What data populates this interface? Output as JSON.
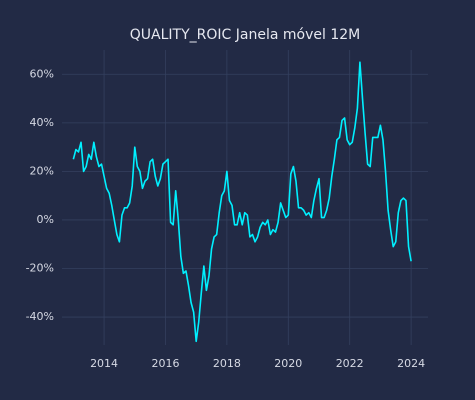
{
  "chart_data": {
    "type": "line",
    "title": "QUALITY_ROIC Janela móvel 12M",
    "x": [
      2013,
      2013.083,
      2013.167,
      2013.25,
      2013.333,
      2013.417,
      2013.5,
      2013.583,
      2013.667,
      2013.75,
      2013.833,
      2013.917,
      2014,
      2014.083,
      2014.167,
      2014.25,
      2014.333,
      2014.417,
      2014.5,
      2014.583,
      2014.667,
      2014.75,
      2014.833,
      2014.917,
      2015,
      2015.083,
      2015.167,
      2015.25,
      2015.333,
      2015.417,
      2015.5,
      2015.583,
      2015.667,
      2015.75,
      2015.833,
      2015.917,
      2016,
      2016.083,
      2016.167,
      2016.25,
      2016.333,
      2016.417,
      2016.5,
      2016.583,
      2016.667,
      2016.75,
      2016.833,
      2016.917,
      2017,
      2017.083,
      2017.167,
      2017.25,
      2017.333,
      2017.417,
      2017.5,
      2017.583,
      2017.667,
      2017.75,
      2017.833,
      2017.917,
      2018,
      2018.083,
      2018.167,
      2018.25,
      2018.333,
      2018.417,
      2018.5,
      2018.583,
      2018.667,
      2018.75,
      2018.833,
      2018.917,
      2019,
      2019.083,
      2019.167,
      2019.25,
      2019.333,
      2019.417,
      2019.5,
      2019.583,
      2019.667,
      2019.75,
      2019.833,
      2019.917,
      2020,
      2020.083,
      2020.167,
      2020.25,
      2020.333,
      2020.417,
      2020.5,
      2020.583,
      2020.667,
      2020.75,
      2020.833,
      2020.917,
      2021,
      2021.083,
      2021.167,
      2021.25,
      2021.333,
      2021.417,
      2021.5,
      2021.583,
      2021.667,
      2021.75,
      2021.833,
      2021.917,
      2022,
      2022.083,
      2022.167,
      2022.25,
      2022.333,
      2022.417,
      2022.5,
      2022.583,
      2022.667,
      2022.75,
      2022.833,
      2022.917,
      2023,
      2023.083,
      2023.167,
      2023.25,
      2023.333,
      2023.417,
      2023.5,
      2023.583,
      2023.667,
      2023.75,
      2023.833,
      2023.917,
      2024
    ],
    "series": [
      {
        "color": "#00f0ff",
        "values": [
          25,
          29,
          28,
          32,
          20,
          22,
          27,
          25,
          32,
          26,
          22,
          23,
          18,
          13,
          11,
          6,
          0,
          -6,
          -9,
          2,
          5,
          5,
          7,
          14,
          30,
          22,
          20,
          13,
          16,
          17,
          24,
          25,
          18,
          14,
          17,
          23,
          24,
          25,
          -1,
          -2,
          12,
          0,
          -15,
          -22,
          -21,
          -27,
          -34,
          -38,
          -50,
          -42,
          -30,
          -19,
          -29,
          -23,
          -12,
          -7,
          -6,
          3,
          10,
          12,
          20,
          8,
          6,
          -2,
          -2,
          3,
          -2,
          3,
          2,
          -7,
          -6,
          -9,
          -7,
          -3,
          -1,
          -2,
          0,
          -6,
          -4,
          -5,
          -1,
          7,
          4,
          1,
          2,
          19,
          22,
          16,
          5,
          5,
          4,
          2,
          3,
          1,
          8,
          13,
          17,
          1,
          1,
          4,
          9,
          18,
          25,
          33,
          34,
          41,
          42,
          33,
          31,
          32,
          38,
          46,
          65,
          50,
          36,
          23,
          22,
          34,
          34,
          34,
          39,
          33,
          20,
          4,
          -4,
          -11,
          -9,
          3,
          8,
          9,
          8,
          -11,
          -17
        ]
      }
    ],
    "xlim": [
      2012.63,
      2024.55
    ],
    "xticks": [
      2014,
      2016,
      2018,
      2020,
      2022,
      2024
    ],
    "ylim": [
      -51.5,
      70
    ],
    "yticks": [
      {
        "value": -40,
        "label": "-40%"
      },
      {
        "value": -20,
        "label": "-20%"
      },
      {
        "value": 0,
        "label": "0%"
      },
      {
        "value": 20,
        "label": "20%"
      },
      {
        "value": 40,
        "label": "40%"
      },
      {
        "value": 60,
        "label": "60%"
      }
    ],
    "grid": true
  }
}
